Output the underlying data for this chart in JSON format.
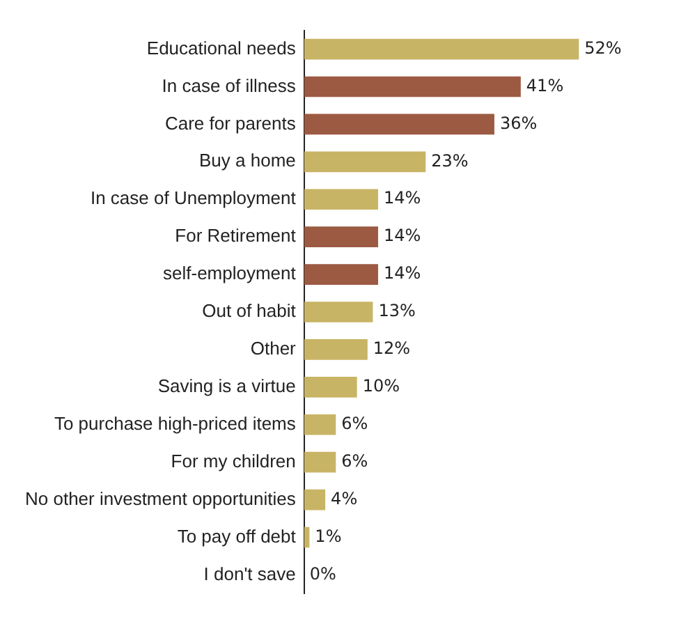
{
  "chart_data": {
    "type": "bar",
    "orientation": "horizontal",
    "categories": [
      "Educational needs",
      "In case of illness",
      "Care for parents",
      "Buy a home",
      "In case of Unemployment",
      "For Retirement",
      "self-employment",
      "Out of habit",
      "Other",
      "Saving is a virtue",
      "To purchase high-priced items",
      "For my children",
      "No other investment opportunities",
      "To pay off debt",
      "I don't save"
    ],
    "values": [
      52,
      41,
      36,
      23,
      14,
      14,
      14,
      13,
      12,
      10,
      6,
      6,
      4,
      1,
      0
    ],
    "colors": [
      "#c8b465",
      "#9c5a43",
      "#9c5a43",
      "#c8b465",
      "#c8b465",
      "#9c5a43",
      "#9c5a43",
      "#c8b465",
      "#c8b465",
      "#c8b465",
      "#c8b465",
      "#c8b465",
      "#c8b465",
      "#c8b465",
      "#c8b465"
    ],
    "value_labels": [
      "52%",
      "41%",
      "36%",
      "23%",
      "14%",
      "14%",
      "14%",
      "13%",
      "12%",
      "10%",
      "6%",
      "6%",
      "4%",
      "1%",
      "0%"
    ],
    "grid": false,
    "legend": false
  }
}
